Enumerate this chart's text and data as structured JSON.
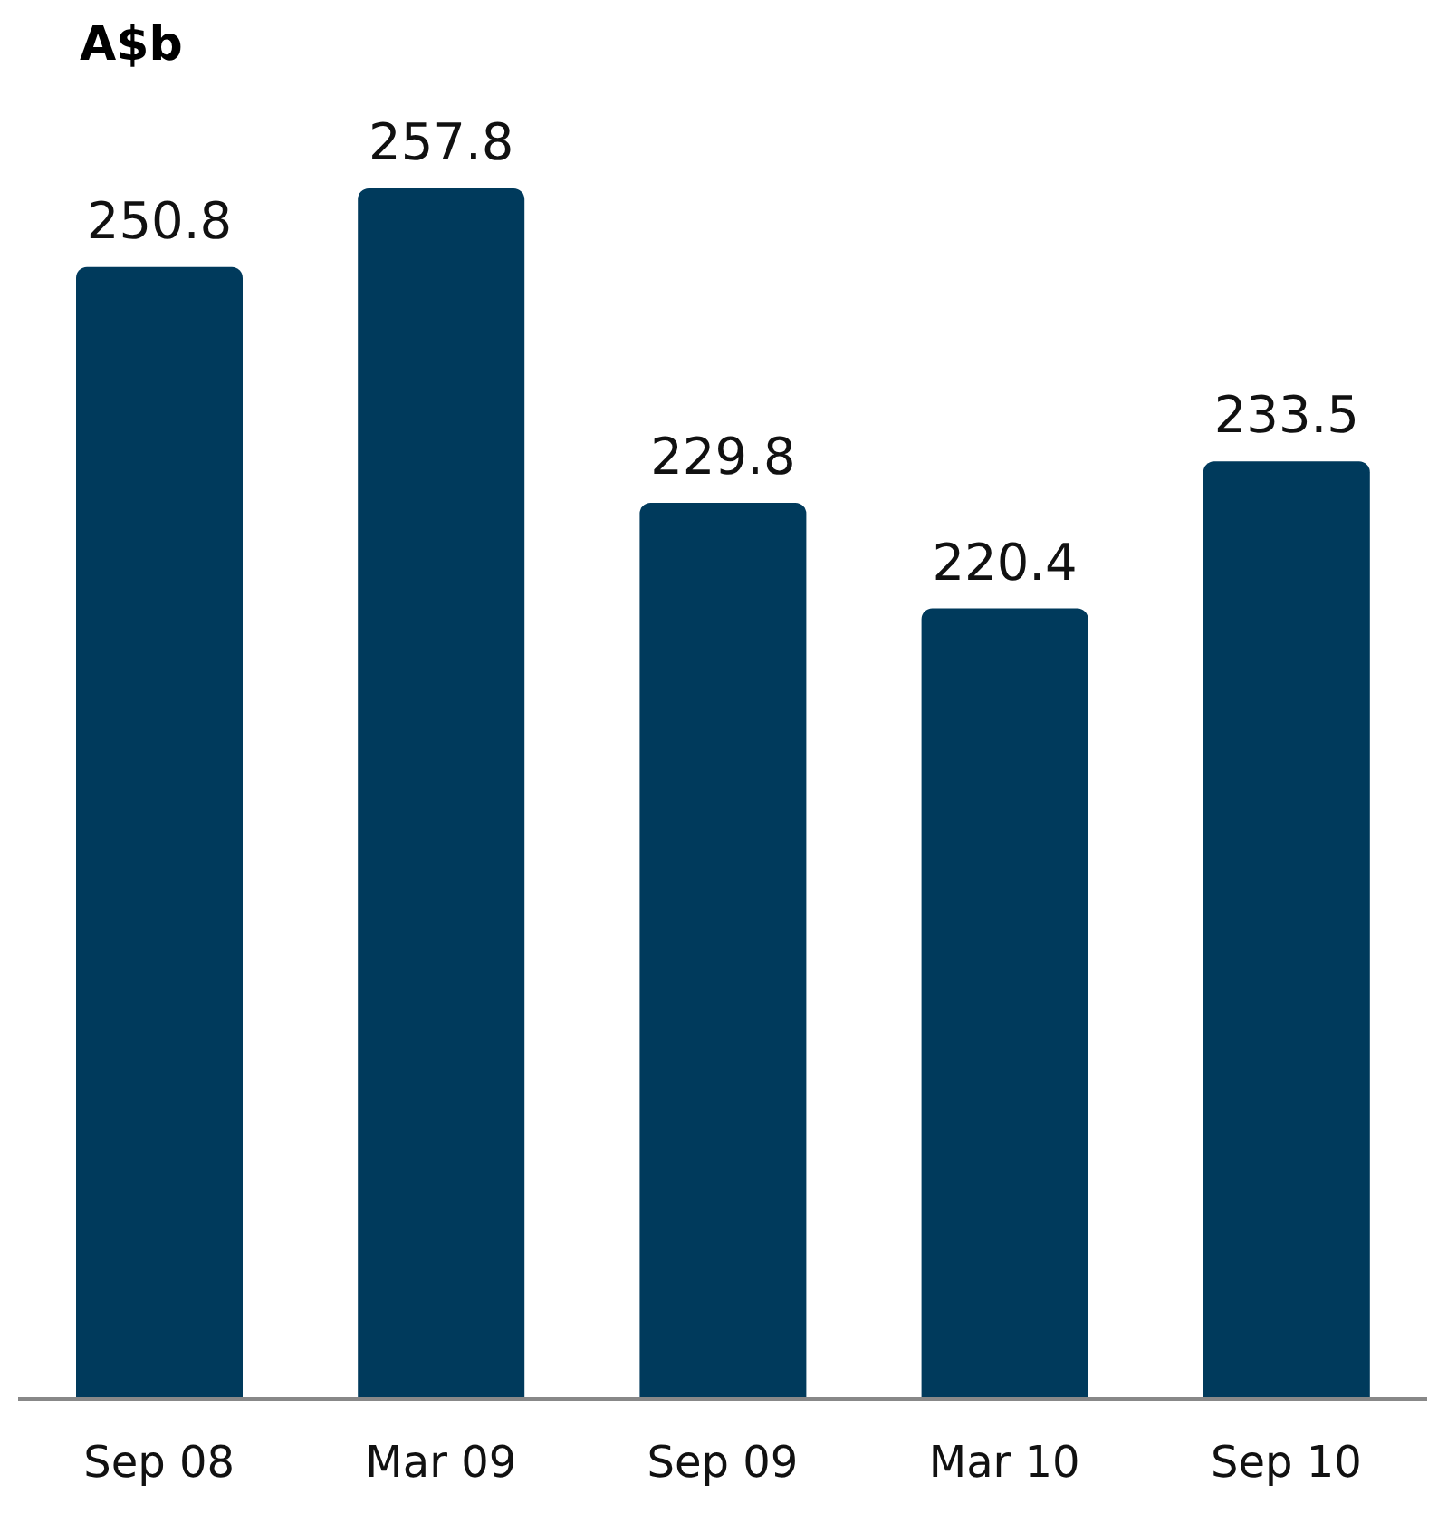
{
  "chart_data": {
    "type": "bar",
    "ylabel": "A$b",
    "categories": [
      "Sep 08",
      "Mar 09",
      "Sep 09",
      "Mar 10",
      "Sep 10"
    ],
    "values": [
      250.8,
      257.8,
      229.8,
      220.4,
      233.5
    ],
    "color": "#003a5c",
    "ylim": [
      150,
      257.8
    ],
    "data_labels": true,
    "tick_labels": "x",
    "grid": false,
    "legend": false
  }
}
